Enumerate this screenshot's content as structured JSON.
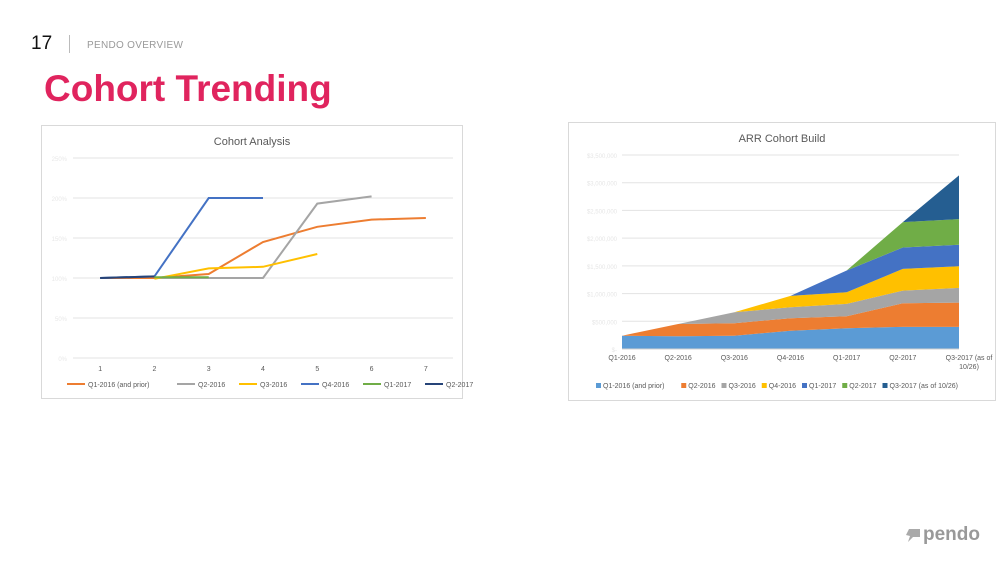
{
  "header": {
    "slide_number": "17",
    "section": "PENDO OVERVIEW",
    "title": "Cohort Trending"
  },
  "logo": {
    "text": "pendo"
  },
  "chart_data": [
    {
      "type": "line",
      "title": "Cohort Analysis",
      "xlabel": "",
      "ylabel": "",
      "categories": [
        "1",
        "2",
        "3",
        "4",
        "5",
        "6",
        "7"
      ],
      "y_ticks": [
        "0%",
        "50%",
        "100%",
        "150%",
        "200%",
        "250%"
      ],
      "ylim": [
        0,
        250
      ],
      "grid": true,
      "legend": "bottom",
      "series": [
        {
          "name": "Q1-2016 (and prior)",
          "color": "#ed7d31",
          "values": [
            100,
            100,
            105,
            145,
            164,
            173,
            175
          ]
        },
        {
          "name": "Q2-2016",
          "color": "#a5a5a5",
          "values": [
            null,
            100,
            100,
            100,
            193,
            202,
            null
          ]
        },
        {
          "name": "Q3-2016",
          "color": "#ffc000",
          "values": [
            null,
            99,
            112,
            114,
            130,
            null,
            null
          ]
        },
        {
          "name": "Q4-2016",
          "color": "#4472c4",
          "values": [
            100,
            102,
            200,
            200,
            null,
            null,
            null
          ]
        },
        {
          "name": "Q1-2017",
          "color": "#70ad47",
          "values": [
            null,
            101,
            101,
            null,
            null,
            null,
            null
          ]
        },
        {
          "name": "Q2-2017",
          "color": "#264478",
          "values": [
            100,
            102,
            null,
            null,
            null,
            null,
            null
          ]
        }
      ]
    },
    {
      "type": "area",
      "stacked": true,
      "title": "ARR Cohort Build",
      "xlabel": "",
      "ylabel": "",
      "categories": [
        "Q1-2016",
        "Q2-2016",
        "Q3-2016",
        "Q4-2016",
        "Q1-2017",
        "Q2-2017",
        "Q3-2017 (as of 10/26)"
      ],
      "y_ticks": [
        "$-",
        "$500,000",
        "$1,000,000",
        "$1,500,000",
        "$2,000,000",
        "$2,500,000",
        "$3,000,000",
        "$3,500,000"
      ],
      "ylim": [
        0,
        3500000
      ],
      "grid": true,
      "legend": "bottom",
      "series": [
        {
          "name": "Q1-2016 (and prior)",
          "color": "#5b9bd5",
          "values": [
            240000,
            230000,
            240000,
            330000,
            375000,
            400000,
            400000
          ]
        },
        {
          "name": "Q2-2016",
          "color": "#ed7d31",
          "values": [
            0,
            220000,
            225000,
            225000,
            215000,
            425000,
            437000
          ]
        },
        {
          "name": "Q3-2016",
          "color": "#a5a5a5",
          "values": [
            0,
            0,
            198000,
            198000,
            223000,
            229000,
            265000
          ]
        },
        {
          "name": "Q4-2016",
          "color": "#ffc000",
          "values": [
            0,
            0,
            0,
            205000,
            211000,
            392000,
            392000
          ]
        },
        {
          "name": "Q1-2017",
          "color": "#4472c4",
          "values": [
            0,
            0,
            0,
            0,
            392000,
            385000,
            386000
          ]
        },
        {
          "name": "Q2-2017",
          "color": "#70ad47",
          "values": [
            0,
            0,
            0,
            0,
            0,
            458000,
            463000
          ]
        },
        {
          "name": "Q3-2017 (as of 10/26)",
          "color": "#255e91",
          "values": [
            0,
            0,
            0,
            0,
            0,
            0,
            790000
          ]
        }
      ]
    }
  ]
}
